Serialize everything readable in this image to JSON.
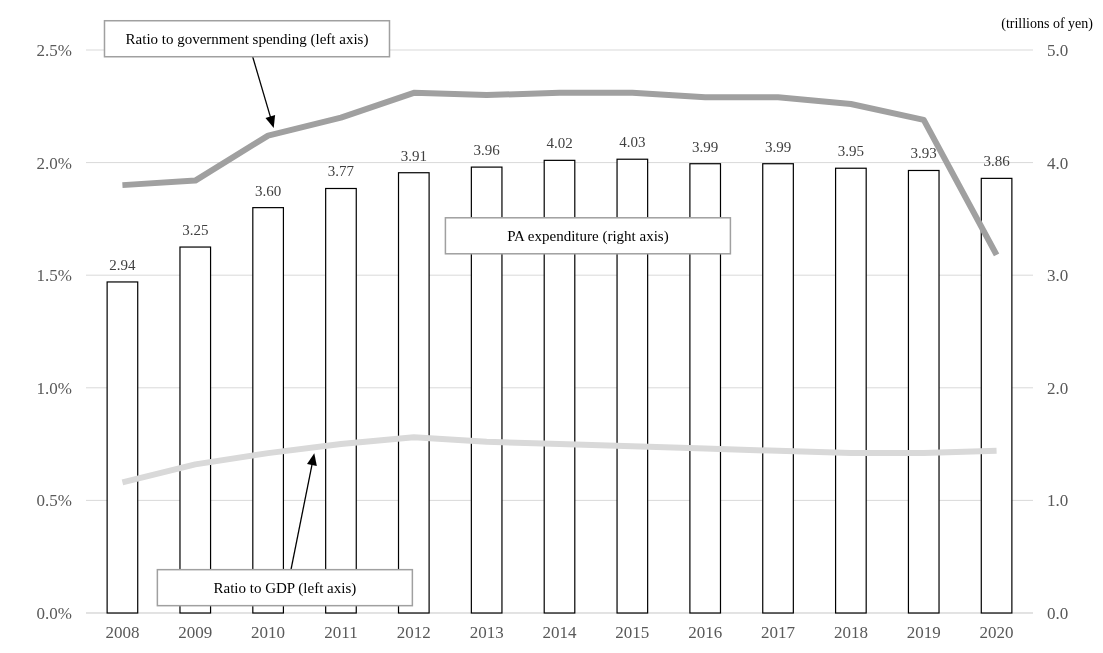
{
  "chart_data": {
    "type": "bar",
    "categories": [
      "2008",
      "2009",
      "2010",
      "2011",
      "2012",
      "2013",
      "2014",
      "2015",
      "2016",
      "2017",
      "2018",
      "2019",
      "2020"
    ],
    "y2label": "(trillions of yen)",
    "series": [
      {
        "name": "PA expenditure (right axis)",
        "axis": "y2",
        "color": "#ffffff",
        "values": [
          2.94,
          3.25,
          3.6,
          3.77,
          3.91,
          3.96,
          4.02,
          4.03,
          3.99,
          3.99,
          3.95,
          3.93,
          3.86
        ],
        "value_labels": [
          "2.94",
          "3.25",
          "3.60",
          "3.77",
          "3.91",
          "3.96",
          "4.02",
          "4.03",
          "3.99",
          "3.99",
          "3.95",
          "3.93",
          "3.86"
        ]
      },
      {
        "name": "Ratio to government spending (left axis)",
        "type": "line",
        "color": "#a0a0a0",
        "values": [
          1.9,
          1.92,
          2.12,
          2.2,
          2.31,
          2.3,
          2.31,
          2.31,
          2.29,
          2.29,
          2.26,
          2.19,
          1.59
        ]
      },
      {
        "name": "Ratio to GDP (left axis)",
        "type": "line",
        "color": "#d9d9d9",
        "values": [
          0.58,
          0.66,
          0.71,
          0.75,
          0.78,
          0.76,
          0.75,
          0.74,
          0.73,
          0.72,
          0.71,
          0.71,
          0.72
        ]
      }
    ],
    "ylim": [
      0,
      2.5
    ],
    "yticks": [
      {
        "value": 0,
        "label": "0.0%"
      },
      {
        "value": 0.5,
        "label": "0.5%"
      },
      {
        "value": 1,
        "label": "1.0%"
      },
      {
        "value": 1.5,
        "label": "1.5%"
      },
      {
        "value": 2,
        "label": "2.0%"
      },
      {
        "value": 2.5,
        "label": "2.5%"
      }
    ],
    "y2lim": [
      0,
      5
    ],
    "y2ticks": [
      {
        "value": 0,
        "label": "0.0"
      },
      {
        "value": 1,
        "label": "1.0"
      },
      {
        "value": 2,
        "label": "2.0"
      },
      {
        "value": 3,
        "label": "3.0"
      },
      {
        "value": 4,
        "label": "4.0"
      },
      {
        "value": 5,
        "label": "5.0"
      }
    ],
    "grid": "y",
    "legend": false,
    "marker": "none",
    "line_style": "solid"
  }
}
